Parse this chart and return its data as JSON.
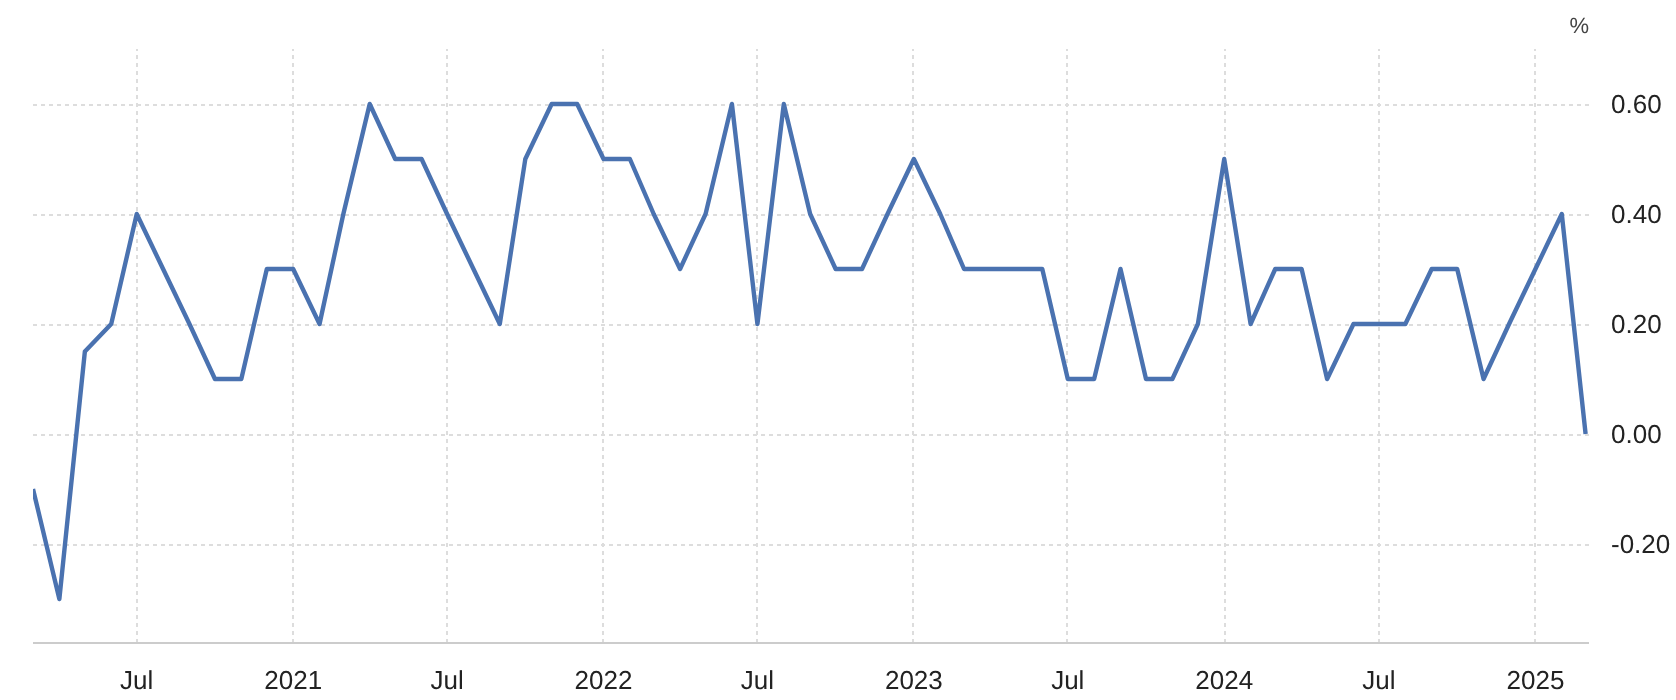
{
  "chart_data": {
    "type": "line",
    "ylabel": "%",
    "x": [
      "2020-03",
      "2020-04",
      "2020-05",
      "2020-06",
      "2020-07",
      "2020-08",
      "2020-09",
      "2020-10",
      "2020-11",
      "2020-12",
      "2021-01",
      "2021-02",
      "2021-03",
      "2021-04",
      "2021-05",
      "2021-06",
      "2021-07",
      "2021-08",
      "2021-09",
      "2021-10",
      "2021-11",
      "2021-12",
      "2022-01",
      "2022-02",
      "2022-03",
      "2022-04",
      "2022-05",
      "2022-06",
      "2022-07",
      "2022-08",
      "2022-09",
      "2022-10",
      "2022-11",
      "2022-12",
      "2023-01",
      "2023-02",
      "2023-03",
      "2023-04",
      "2023-05",
      "2023-06",
      "2023-07",
      "2023-08",
      "2023-09",
      "2023-10",
      "2023-11",
      "2023-12",
      "2024-01",
      "2024-02",
      "2024-03",
      "2024-04",
      "2024-05",
      "2024-06",
      "2024-07",
      "2024-08",
      "2024-09",
      "2024-10",
      "2024-11",
      "2024-12",
      "2025-01",
      "2025-02",
      "2025-03"
    ],
    "series": [
      {
        "color": "#4a72b0",
        "values": [
          -0.1,
          -0.3,
          0.15,
          0.2,
          0.4,
          0.3,
          0.2,
          0.1,
          0.1,
          0.3,
          0.3,
          0.2,
          0.4,
          0.6,
          0.5,
          0.5,
          0.4,
          0.3,
          0.2,
          0.5,
          0.6,
          0.6,
          0.5,
          0.5,
          0.4,
          0.3,
          0.4,
          0.6,
          0.2,
          0.6,
          0.4,
          0.3,
          0.3,
          0.4,
          0.5,
          0.4,
          0.3,
          0.3,
          0.3,
          0.3,
          0.1,
          0.1,
          0.3,
          0.1,
          0.1,
          0.2,
          0.5,
          0.2,
          0.3,
          0.3,
          0.1,
          0.2,
          0.2,
          0.2,
          0.3,
          0.3,
          0.1,
          0.2,
          0.3,
          0.4,
          0.0
        ]
      }
    ],
    "xlim": [
      "2020-03",
      "2025-03-05"
    ],
    "xticks": [
      {
        "value": "2020-07",
        "label": "Jul"
      },
      {
        "value": "2021-01",
        "label": "2021"
      },
      {
        "value": "2021-07",
        "label": "Jul"
      },
      {
        "value": "2022-01",
        "label": "2022"
      },
      {
        "value": "2022-07",
        "label": "Jul"
      },
      {
        "value": "2023-01",
        "label": "2023"
      },
      {
        "value": "2023-07",
        "label": "Jul"
      },
      {
        "value": "2024-01",
        "label": "2024"
      },
      {
        "value": "2024-07",
        "label": "Jul"
      },
      {
        "value": "2025-01",
        "label": "2025"
      }
    ],
    "ylim": [
      -0.38,
      0.7
    ],
    "yticks": [
      {
        "value": -0.2,
        "label": "-0.20"
      },
      {
        "value": 0,
        "label": "0.00"
      },
      {
        "value": 0.2,
        "label": "0.20"
      },
      {
        "value": 0.4,
        "label": "0.40"
      },
      {
        "value": 0.6,
        "label": "0.60"
      }
    ],
    "grid": true,
    "line_style": "solid"
  }
}
